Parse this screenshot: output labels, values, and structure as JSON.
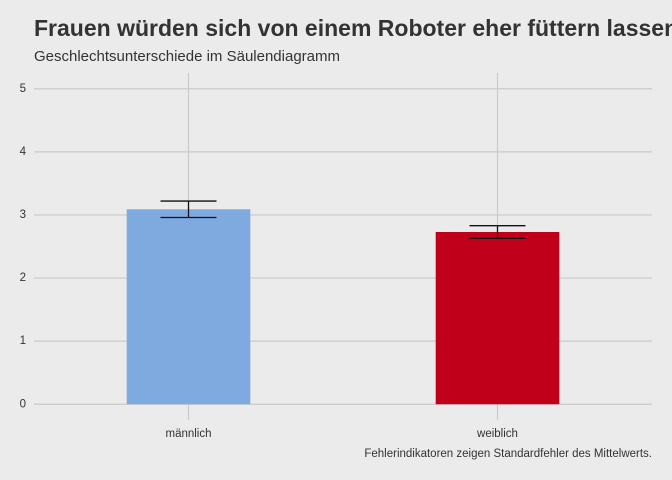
{
  "chart_data": {
    "type": "bar",
    "title": "Frauen würden sich von einem Roboter eher füttern lassen",
    "subtitle": "Geschlechtsunterschiede im Säulendiagramm",
    "caption": "Fehlerindikatoren zeigen Standardfehler des Mittelwerts.",
    "categories": [
      "männlich",
      "weiblich"
    ],
    "values": [
      3.09,
      2.73
    ],
    "errors": [
      0.13,
      0.1
    ],
    "colors": [
      "#7faadf",
      "#c0001a"
    ],
    "ylim": [
      -0.25,
      5.25
    ],
    "yticks": [
      0,
      1,
      2,
      3,
      4,
      5
    ],
    "grid": true
  }
}
